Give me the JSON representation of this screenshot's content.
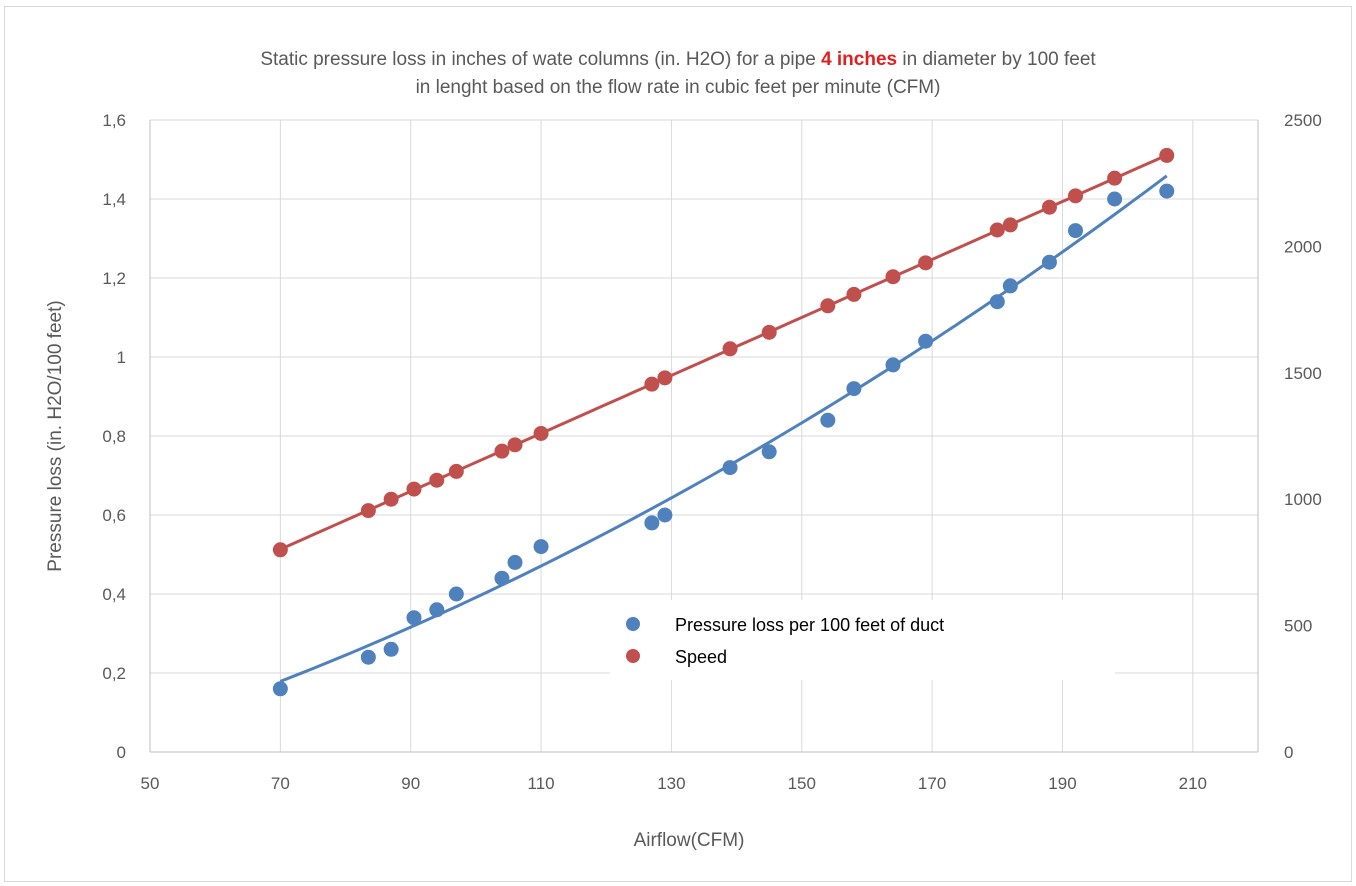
{
  "chart_data": {
    "type": "scatter",
    "title": {
      "prefix": "Static pressure loss in inches of wate columns (in. H2O) for a pipe ",
      "highlight": "4 inches",
      "suffix_line1": " in diameter by 100 feet",
      "line2": "in lenght based on the flow rate in cubic feet per minute (CFM)"
    },
    "xlabel": "Airflow(CFM)",
    "ylabel": "Pressure loss (in. H2O/100 feet)",
    "xlim": [
      50,
      220
    ],
    "ylim": [
      0,
      1.6
    ],
    "y2lim": [
      0,
      2500
    ],
    "x_ticks": [
      "50",
      "70",
      "90",
      "110",
      "130",
      "150",
      "170",
      "190",
      "210"
    ],
    "y_ticks": [
      "0",
      "0,2",
      "0,4",
      "0,6",
      "0,8",
      "1",
      "1,2",
      "1,4",
      "1,6"
    ],
    "y2_ticks": [
      "0",
      "500",
      "1000",
      "1500",
      "2000",
      "2500"
    ],
    "grid": true,
    "legend_position": "inside-bottom-center",
    "series": [
      {
        "name": "Pressure loss per 100 feet of duct",
        "axis": "left",
        "color": "#4f81bd",
        "trendline": "polynomial",
        "points": [
          [
            70,
            0.16
          ],
          [
            83.5,
            0.24
          ],
          [
            87,
            0.26
          ],
          [
            90.5,
            0.34
          ],
          [
            94,
            0.36
          ],
          [
            97,
            0.4
          ],
          [
            104,
            0.44
          ],
          [
            106,
            0.48
          ],
          [
            110,
            0.52
          ],
          [
            127,
            0.58
          ],
          [
            129,
            0.6
          ],
          [
            139,
            0.72
          ],
          [
            145,
            0.76
          ],
          [
            154,
            0.84
          ],
          [
            158,
            0.92
          ],
          [
            164,
            0.98
          ],
          [
            169,
            1.04
          ],
          [
            180,
            1.14
          ],
          [
            182,
            1.18
          ],
          [
            188,
            1.24
          ],
          [
            192,
            1.32
          ],
          [
            198,
            1.4
          ],
          [
            206,
            1.42
          ]
        ]
      },
      {
        "name": "Speed",
        "axis": "right",
        "color": "#c0504d",
        "trendline": "linear",
        "points": [
          [
            70,
            800
          ],
          [
            83.5,
            955
          ],
          [
            87,
            1000
          ],
          [
            90.5,
            1040
          ],
          [
            94,
            1075
          ],
          [
            97,
            1110
          ],
          [
            104,
            1190
          ],
          [
            106,
            1215
          ],
          [
            110,
            1260
          ],
          [
            127,
            1455
          ],
          [
            129,
            1480
          ],
          [
            139,
            1595
          ],
          [
            145,
            1660
          ],
          [
            154,
            1765
          ],
          [
            158,
            1810
          ],
          [
            164,
            1880
          ],
          [
            169,
            1935
          ],
          [
            180,
            2065
          ],
          [
            182,
            2085
          ],
          [
            188,
            2155
          ],
          [
            192,
            2200
          ],
          [
            198,
            2270
          ],
          [
            206,
            2360
          ]
        ]
      }
    ]
  }
}
